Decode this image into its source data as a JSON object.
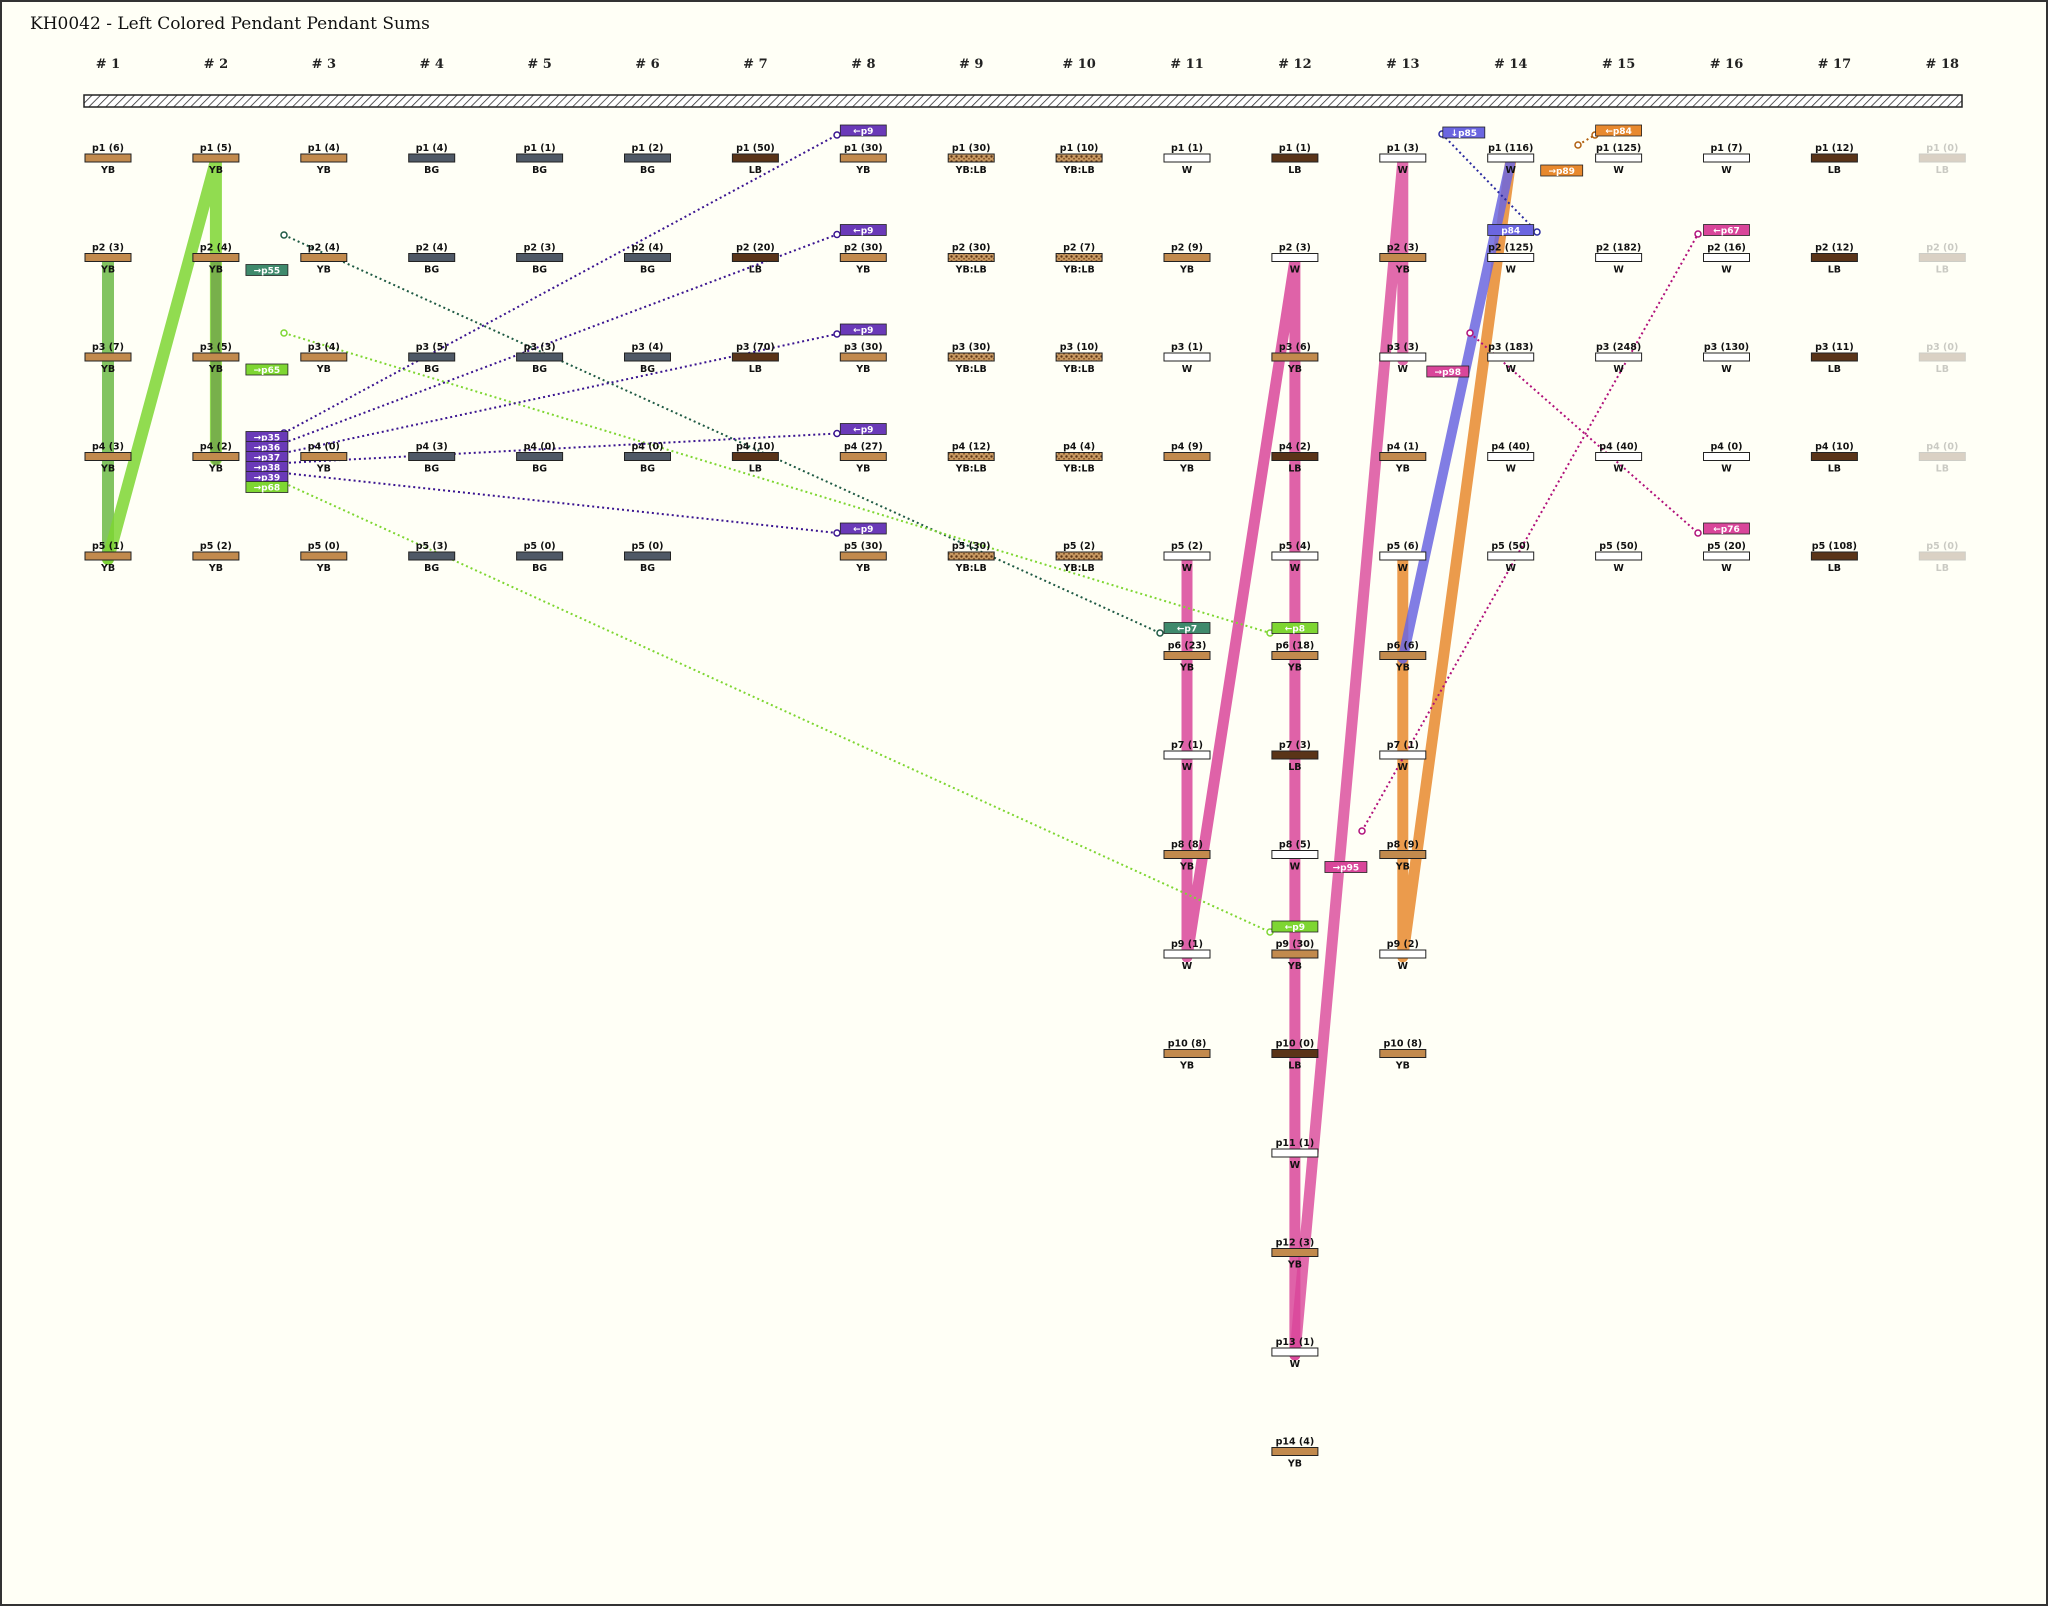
{
  "title": "KH0042 - Left Colored Pendant Pendant Sums",
  "colors": {
    "YB": "#c28a4d",
    "BG": "#4f5966",
    "LB": "#5a3418",
    "W": "#ffffff",
    "YB:LB": "#b88650",
    "green_dark": "#5aa63a",
    "green_light": "#7ed632",
    "teal": "#3f8a6c",
    "purple": "#6a3ab8",
    "pink": "#d9469a",
    "blue": "#6b66e0",
    "orange": "#e8892e"
  },
  "columns": [
    "# 1",
    "# 2",
    "# 3",
    "# 4",
    "# 5",
    "# 6",
    "# 7",
    "# 8",
    "# 9",
    "# 10",
    "# 11",
    "# 12",
    "# 13",
    "# 14",
    "# 15",
    "# 16",
    "# 17",
    "# 18"
  ],
  "cords": [
    [
      [
        "p1 (6)",
        "YB"
      ],
      [
        "p2 (3)",
        "YB"
      ],
      [
        "p3 (7)",
        "YB"
      ],
      [
        "p4 (3)",
        "YB"
      ],
      [
        "p5 (1)",
        "YB"
      ]
    ],
    [
      [
        "p1 (5)",
        "YB"
      ],
      [
        "p2 (4)",
        "YB"
      ],
      [
        "p3 (5)",
        "YB"
      ],
      [
        "p4 (2)",
        "YB"
      ],
      [
        "p5 (2)",
        "YB"
      ]
    ],
    [
      [
        "p1 (4)",
        "YB"
      ],
      [
        "p2 (4)",
        "YB"
      ],
      [
        "p3 (4)",
        "YB"
      ],
      [
        "p4 (0)",
        "YB"
      ],
      [
        "p5 (0)",
        "YB"
      ]
    ],
    [
      [
        "p1 (4)",
        "BG"
      ],
      [
        "p2 (4)",
        "BG"
      ],
      [
        "p3 (5)",
        "BG"
      ],
      [
        "p4 (3)",
        "BG"
      ],
      [
        "p5 (3)",
        "BG"
      ]
    ],
    [
      [
        "p1 (1)",
        "BG"
      ],
      [
        "p2 (3)",
        "BG"
      ],
      [
        "p3 (3)",
        "BG"
      ],
      [
        "p4 (0)",
        "BG"
      ],
      [
        "p5 (0)",
        "BG"
      ]
    ],
    [
      [
        "p1 (2)",
        "BG"
      ],
      [
        "p2 (4)",
        "BG"
      ],
      [
        "p3 (4)",
        "BG"
      ],
      [
        "p4 (0)",
        "BG"
      ],
      [
        "p5 (0)",
        "BG"
      ]
    ],
    [
      [
        "p1 (50)",
        "LB"
      ],
      [
        "p2 (20)",
        "LB"
      ],
      [
        "p3 (70)",
        "LB"
      ],
      [
        "p4 (10)",
        "LB"
      ]
    ],
    [
      [
        "p1 (30)",
        "YB"
      ],
      [
        "p2 (30)",
        "YB"
      ],
      [
        "p3 (30)",
        "YB"
      ],
      [
        "p4 (27)",
        "YB"
      ],
      [
        "p5 (30)",
        "YB"
      ]
    ],
    [
      [
        "p1 (30)",
        "YB:LB"
      ],
      [
        "p2 (30)",
        "YB:LB"
      ],
      [
        "p3 (30)",
        "YB:LB"
      ],
      [
        "p4 (12)",
        "YB:LB"
      ],
      [
        "p5 (30)",
        "YB:LB"
      ]
    ],
    [
      [
        "p1 (10)",
        "YB:LB"
      ],
      [
        "p2 (7)",
        "YB:LB"
      ],
      [
        "p3 (10)",
        "YB:LB"
      ],
      [
        "p4 (4)",
        "YB:LB"
      ],
      [
        "p5 (2)",
        "YB:LB"
      ]
    ],
    [
      [
        "p1 (1)",
        "W"
      ],
      [
        "p2 (9)",
        "YB"
      ],
      [
        "p3 (1)",
        "W"
      ],
      [
        "p4 (9)",
        "YB"
      ],
      [
        "p5 (2)",
        "W"
      ],
      [
        "p6 (23)",
        "YB"
      ],
      [
        "p7 (1)",
        "W"
      ],
      [
        "p8 (8)",
        "YB"
      ],
      [
        "p9 (1)",
        "W"
      ],
      [
        "p10 (8)",
        "YB"
      ]
    ],
    [
      [
        "p1 (1)",
        "LB"
      ],
      [
        "p2 (3)",
        "W"
      ],
      [
        "p3 (6)",
        "YB"
      ],
      [
        "p4 (2)",
        "LB"
      ],
      [
        "p5 (4)",
        "W"
      ],
      [
        "p6 (18)",
        "YB"
      ],
      [
        "p7 (3)",
        "LB"
      ],
      [
        "p8 (5)",
        "W"
      ],
      [
        "p9 (30)",
        "YB"
      ],
      [
        "p10 (0)",
        "LB"
      ],
      [
        "p11 (1)",
        "W"
      ],
      [
        "p12 (3)",
        "YB"
      ],
      [
        "p13 (1)",
        "W"
      ],
      [
        "p14 (4)",
        "YB"
      ]
    ],
    [
      [
        "p1 (3)",
        "W"
      ],
      [
        "p2 (3)",
        "YB"
      ],
      [
        "p3 (3)",
        "W"
      ],
      [
        "p4 (1)",
        "YB"
      ],
      [
        "p5 (6)",
        "W"
      ],
      [
        "p6 (6)",
        "YB"
      ],
      [
        "p7 (1)",
        "W"
      ],
      [
        "p8 (9)",
        "YB"
      ],
      [
        "p9 (2)",
        "W"
      ],
      [
        "p10 (8)",
        "YB"
      ]
    ],
    [
      [
        "p1 (116)",
        "W"
      ],
      [
        "p2 (125)",
        "W"
      ],
      [
        "p3 (183)",
        "W"
      ],
      [
        "p4 (40)",
        "W"
      ],
      [
        "p5 (50)",
        "W"
      ]
    ],
    [
      [
        "p1 (125)",
        "W"
      ],
      [
        "p2 (182)",
        "W"
      ],
      [
        "p3 (248)",
        "W"
      ],
      [
        "p4 (40)",
        "W"
      ],
      [
        "p5 (50)",
        "W"
      ]
    ],
    [
      [
        "p1 (7)",
        "W"
      ],
      [
        "p2 (16)",
        "W"
      ],
      [
        "p3 (130)",
        "W"
      ],
      [
        "p4 (0)",
        "W"
      ],
      [
        "p5 (20)",
        "W"
      ]
    ],
    [
      [
        "p1 (12)",
        "LB"
      ],
      [
        "p2 (12)",
        "LB"
      ],
      [
        "p3 (11)",
        "LB"
      ],
      [
        "p4 (10)",
        "LB"
      ],
      [
        "p5 (108)",
        "LB"
      ]
    ],
    [
      [
        "p1 (0)",
        "LB"
      ],
      [
        "p2 (0)",
        "LB"
      ],
      [
        "p3 (0)",
        "LB"
      ],
      [
        "p4 (0)",
        "LB"
      ],
      [
        "p5 (0)",
        "LB"
      ]
    ]
  ],
  "faded_columns": [
    17
  ],
  "tags": [
    {
      "text": "→p55",
      "col": 1,
      "row": 1,
      "color": "teal",
      "side": "right"
    },
    {
      "text": "→p65",
      "col": 1,
      "row": 2,
      "color": "green_light",
      "side": "right"
    },
    {
      "text": "→p35",
      "col": 1,
      "row": 3,
      "color": "purple",
      "side": "right",
      "slot": 0
    },
    {
      "text": "→p36",
      "col": 1,
      "row": 3,
      "color": "purple",
      "side": "right",
      "slot": 1
    },
    {
      "text": "→p37",
      "col": 1,
      "row": 3,
      "color": "purple",
      "side": "right",
      "slot": 2
    },
    {
      "text": "→p38",
      "col": 1,
      "row": 3,
      "color": "purple",
      "side": "right",
      "slot": 3
    },
    {
      "text": "→p39",
      "col": 1,
      "row": 3,
      "color": "purple",
      "side": "right",
      "slot": 4
    },
    {
      "text": "→p68",
      "col": 1,
      "row": 3,
      "color": "green_light",
      "side": "right",
      "slot": 5
    },
    {
      "text": "←p9",
      "col": 7,
      "row": 0,
      "color": "purple",
      "side": "top"
    },
    {
      "text": "←p9",
      "col": 7,
      "row": 1,
      "color": "purple",
      "side": "top"
    },
    {
      "text": "←p9",
      "col": 7,
      "row": 2,
      "color": "purple",
      "side": "top"
    },
    {
      "text": "←p9",
      "col": 7,
      "row": 3,
      "color": "purple",
      "side": "top"
    },
    {
      "text": "←p9",
      "col": 7,
      "row": 4,
      "color": "purple",
      "side": "top"
    },
    {
      "text": "←p7",
      "col": 10,
      "row": 5,
      "color": "teal",
      "side": "top"
    },
    {
      "text": "←p8",
      "col": 11,
      "row": 5,
      "color": "green_light",
      "side": "top"
    },
    {
      "text": "←p9",
      "col": 11,
      "row": 8,
      "color": "green_light",
      "side": "top"
    },
    {
      "text": "→p95",
      "col": 11,
      "row": 7,
      "color": "pink",
      "side": "right"
    },
    {
      "text": "→p98",
      "col": 12,
      "row": 2,
      "color": "pink",
      "side": "right"
    },
    {
      "text": "↓p85",
      "col": 12,
      "row": 0,
      "color": "blue",
      "side": "righttop"
    },
    {
      "text": "p84",
      "col": 13,
      "row": 1,
      "color": "blue",
      "side": "top"
    },
    {
      "text": "→p89",
      "col": 13,
      "row": 0,
      "color": "orange",
      "side": "right"
    },
    {
      "text": "←p84",
      "col": 14,
      "row": 0,
      "color": "orange",
      "side": "top"
    },
    {
      "text": "←p67",
      "col": 15,
      "row": 1,
      "color": "pink",
      "side": "top"
    },
    {
      "text": "←p76",
      "col": 15,
      "row": 4,
      "color": "pink",
      "side": "top"
    }
  ]
}
